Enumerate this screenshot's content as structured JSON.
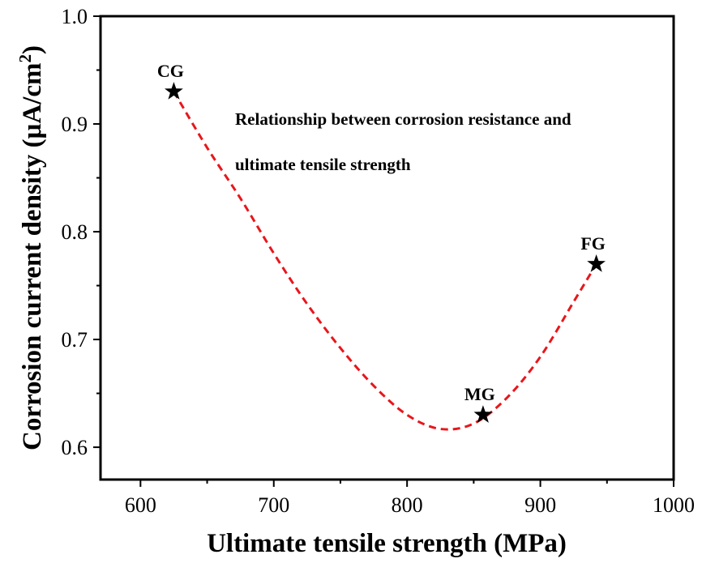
{
  "chart_data": {
    "type": "scatter",
    "title": "",
    "xlabel": "Ultimate tensile strength (MPa)",
    "ylabel_main": "Corrosion current density (μA/cm",
    "ylabel_sup": "2",
    "ylabel_close": ")",
    "xlim": [
      570,
      1000
    ],
    "ylim": [
      0.57,
      1.0
    ],
    "x_ticks": [
      600,
      700,
      800,
      900,
      1000
    ],
    "x_tick_labels": [
      "600",
      "700",
      "800",
      "900",
      "1000"
    ],
    "y_ticks": [
      0.6,
      0.7,
      0.8,
      0.9,
      1.0
    ],
    "y_tick_labels": [
      "0.6",
      "0.7",
      "0.8",
      "0.9",
      "1.0"
    ],
    "points": [
      {
        "label": "CG",
        "x": 625,
        "y": 0.93
      },
      {
        "label": "MG",
        "x": 857,
        "y": 0.63
      },
      {
        "label": "FG",
        "x": 942,
        "y": 0.77
      }
    ],
    "fit_curve": {
      "style": "dashed",
      "color": "#e8161b",
      "x": [
        625,
        650,
        675,
        700,
        725,
        750,
        775,
        800,
        825,
        850,
        875,
        900,
        925,
        942
      ],
      "y": [
        0.93,
        0.878,
        0.831,
        0.78,
        0.733,
        0.692,
        0.657,
        0.63,
        0.617,
        0.622,
        0.646,
        0.684,
        0.735,
        0.77
      ]
    },
    "annotation_lines": [
      "Relationship between corrosion resistance and",
      "ultimate tensile strength"
    ],
    "grid": false,
    "marker": "star",
    "marker_color": "#000000"
  }
}
